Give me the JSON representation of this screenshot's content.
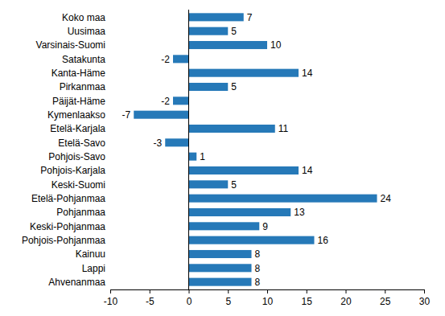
{
  "chart_data": {
    "type": "bar",
    "orientation": "horizontal",
    "categories": [
      "Koko maa",
      "Uusimaa",
      "Varsinais-Suomi",
      "Satakunta",
      "Kanta-Häme",
      "Pirkanmaa",
      "Päijät-Häme",
      "Kymenlaakso",
      "Etelä-Karjala",
      "Etelä-Savo",
      "Pohjois-Savo",
      "Pohjois-Karjala",
      "Keski-Suomi",
      "Etelä-Pohjanmaa",
      "Pohjanmaa",
      "Keski-Pohjanmaa",
      "Pohjois-Pohjanmaa",
      "Kainuu",
      "Lappi",
      "Ahvenanmaa"
    ],
    "values": [
      7,
      5,
      10,
      -2,
      14,
      5,
      -2,
      -7,
      11,
      -3,
      1,
      14,
      5,
      24,
      13,
      9,
      16,
      8,
      8,
      8
    ],
    "color": "#2679b8",
    "xlim": [
      -10,
      30
    ],
    "xticks": [
      -10,
      -5,
      0,
      5,
      10,
      15,
      20,
      25,
      30
    ],
    "data_labels": true,
    "grid": false
  }
}
